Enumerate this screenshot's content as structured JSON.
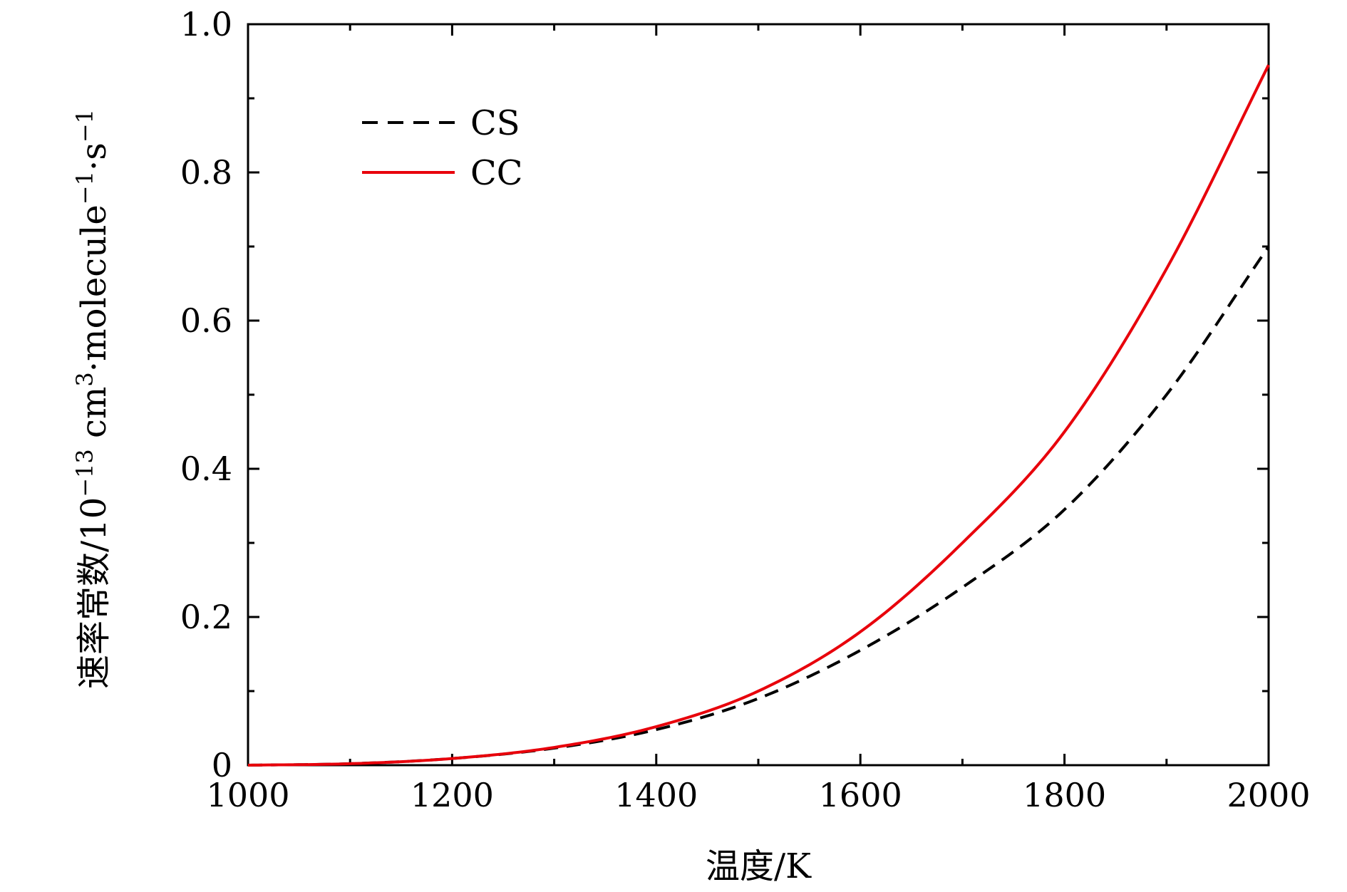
{
  "chart_data": {
    "type": "line",
    "xlabel": "温度/K",
    "ylabel_parts": {
      "base": "速率常数/10",
      "exp1": "−13",
      "mid": " cm",
      "exp2": "3",
      "mid2": "·molecule",
      "exp3": "−1",
      "mid3": "·s",
      "exp4": "−1"
    },
    "xlim": [
      1000,
      2000
    ],
    "ylim": [
      0,
      1.0
    ],
    "x_ticks": [
      1000,
      1200,
      1400,
      1600,
      1800,
      2000
    ],
    "x_tick_labels": [
      "1000",
      "1200",
      "1400",
      "1600",
      "1800",
      "2000"
    ],
    "y_ticks": [
      0,
      0.2,
      0.4,
      0.6,
      0.8,
      1.0
    ],
    "y_tick_labels": [
      "0",
      "0.2",
      "0.4",
      "0.6",
      "0.8",
      "1.0"
    ],
    "grid": false,
    "legend_position": "top-left",
    "x": [
      1000,
      1100,
      1200,
      1300,
      1400,
      1500,
      1600,
      1700,
      1800,
      1900,
      2000
    ],
    "series": [
      {
        "name": "CS",
        "color": "#000000",
        "dash": "dashed",
        "values": [
          0.0,
          0.002,
          0.009,
          0.023,
          0.048,
          0.09,
          0.155,
          0.24,
          0.345,
          0.5,
          0.7
        ]
      },
      {
        "name": "CC",
        "color": "#e8000b",
        "dash": "solid",
        "values": [
          0.0,
          0.002,
          0.009,
          0.024,
          0.052,
          0.1,
          0.18,
          0.3,
          0.45,
          0.67,
          0.945
        ]
      }
    ]
  }
}
